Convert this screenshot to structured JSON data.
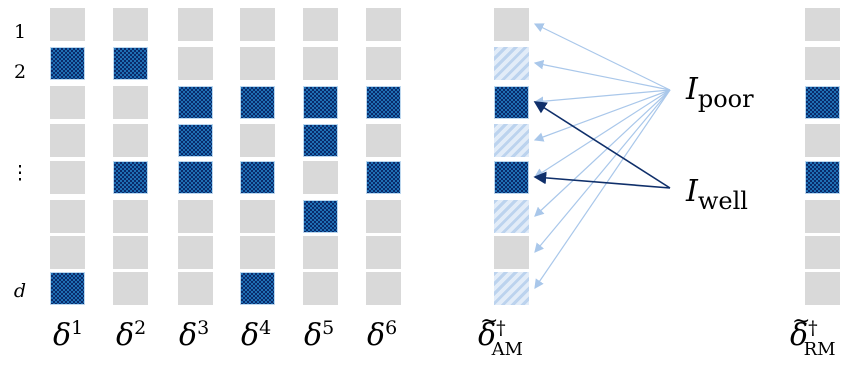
{
  "row_labels": [
    "1",
    "2",
    "⋮",
    "d"
  ],
  "columns": [
    {
      "base": "δ",
      "sup": "1",
      "sub": "",
      "tilde": false,
      "cells": [
        "empty",
        "active",
        "empty",
        "empty",
        "empty",
        "empty",
        "empty",
        "active"
      ]
    },
    {
      "base": "δ",
      "sup": "2",
      "sub": "",
      "tilde": false,
      "cells": [
        "empty",
        "active",
        "empty",
        "empty",
        "active",
        "empty",
        "empty",
        "empty"
      ]
    },
    {
      "base": "δ",
      "sup": "3",
      "sub": "",
      "tilde": false,
      "cells": [
        "empty",
        "empty",
        "active",
        "active",
        "active",
        "empty",
        "empty",
        "empty"
      ]
    },
    {
      "base": "δ",
      "sup": "4",
      "sub": "",
      "tilde": false,
      "cells": [
        "empty",
        "empty",
        "active",
        "empty",
        "active",
        "empty",
        "empty",
        "active"
      ]
    },
    {
      "base": "δ",
      "sup": "5",
      "sub": "",
      "tilde": false,
      "cells": [
        "empty",
        "empty",
        "active",
        "active",
        "empty",
        "active",
        "empty",
        "empty"
      ]
    },
    {
      "base": "δ",
      "sup": "6",
      "sub": "",
      "tilde": false,
      "cells": [
        "empty",
        "empty",
        "active",
        "empty",
        "active",
        "empty",
        "empty",
        "empty"
      ]
    },
    {
      "base": "δ",
      "sup": "†",
      "sub": "AM",
      "tilde": true,
      "cells": [
        "empty",
        "poor",
        "active",
        "poor",
        "active",
        "poor",
        "empty",
        "poor"
      ]
    },
    {
      "base": "δ",
      "sup": "†",
      "sub": "RM",
      "tilde": true,
      "cells": [
        "empty",
        "empty",
        "active",
        "empty",
        "active",
        "empty",
        "empty",
        "empty"
      ]
    }
  ],
  "annotations": {
    "poor": {
      "base": "I",
      "sub": "poor"
    },
    "well": {
      "base": "I",
      "sub": "well"
    }
  },
  "colors": {
    "empty": "#d9d9d9",
    "active": "#1f6fb4",
    "poor_hatch": "#bcd3ee",
    "arrow_poor": "#a9c7ea",
    "arrow_well": "#0f2f6a"
  }
}
